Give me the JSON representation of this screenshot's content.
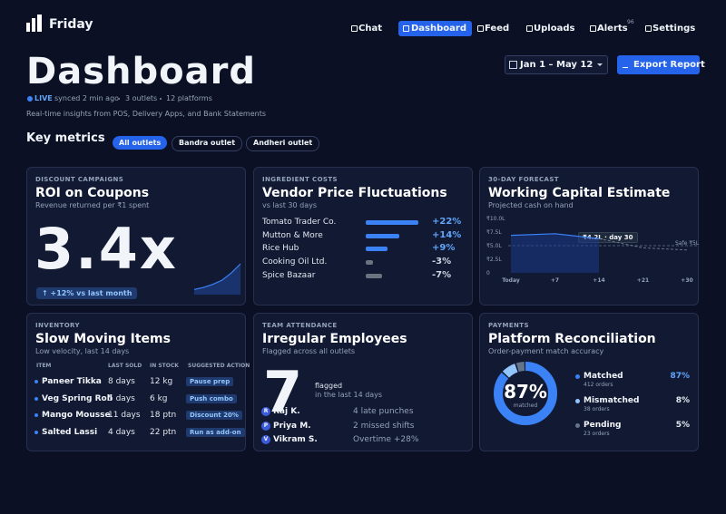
{
  "nav": {
    "brand": "Friday",
    "items": [
      "Chat",
      "Dashboard",
      "Feed",
      "Uploads",
      "Alerts",
      "Settings"
    ],
    "active": 1,
    "alerts_badge": 96
  },
  "header": {
    "title": "Dashboard",
    "live": "LIVE",
    "synced": "synced 2 min ago",
    "outlets": "3 outlets",
    "platforms": "12 platforms",
    "subtitle": "Real-time insights from POS, Delivery Apps, and Bank Statements",
    "date_range": "Jan 1 – May 12",
    "export": "Export Report"
  },
  "metrics": {
    "title": "Key metrics",
    "filters": [
      "All outlets",
      "Bandra outlet",
      "Andheri outlet"
    ],
    "active": 0
  },
  "cards": {
    "roi": {
      "label": "DISCOUNT CAMPAIGNS",
      "title": "ROI on Coupons",
      "subtitle": "Revenue returned per ₹1 spent",
      "value": "3.4x",
      "badge": "↑ +12% vs last month",
      "trend": [
        1,
        1.4,
        2,
        2.8,
        4.2,
        6
      ]
    },
    "vendor": {
      "label": "INGREDIENT COSTS",
      "title": "Vendor Price Fluctuations",
      "subtitle": "vs last 30 days",
      "rows": [
        {
          "name": "Tomato Trader Co.",
          "change": 22,
          "change_label": "+22%"
        },
        {
          "name": "Mutton & More",
          "change": 14,
          "change_label": "+14%"
        },
        {
          "name": "Rice Hub",
          "change": 9,
          "change_label": "+9%"
        },
        {
          "name": "Cooking Oil Ltd.",
          "change": -3,
          "change_label": "-3%"
        },
        {
          "name": "Spice Bazaar",
          "change": -7,
          "change_label": "-7%"
        }
      ]
    },
    "forecast": {
      "label": "30-DAY FORECAST",
      "title": "Working Capital Estimate",
      "subtitle": "Projected cash on hand",
      "categories": [
        "Today",
        "+7",
        "+14",
        "+21",
        "+30"
      ],
      "values": [
        6.9,
        7.2,
        6.3,
        4.6,
        4.2
      ],
      "ylim": [
        0,
        10
      ],
      "yticks": [
        0,
        {
          "value": 2.5,
          "label": "₹2.5L"
        },
        {
          "value": 5,
          "label": "₹5.0L"
        },
        {
          "value": 7.5,
          "label": "₹7.5L"
        },
        {
          "value": 10,
          "label": "₹10.0L"
        }
      ],
      "safe": 5,
      "safe_label": "Safe ₹5L",
      "annotation": "₹4.2L · day 30"
    },
    "slow": {
      "label": "INVENTORY",
      "title": "Slow Moving Items",
      "subtitle": "Low velocity, last 14 days",
      "columns": [
        "ITEM",
        "LAST SOLD",
        "IN STOCK",
        "SUGGESTED ACTION"
      ],
      "rows": [
        [
          "Paneer Tikka",
          "8 days",
          "12 kg",
          "Pause prep"
        ],
        [
          "Veg Spring Roll",
          "5 days",
          "6 kg",
          "Push combo"
        ],
        [
          "Mango Mousse",
          "11 days",
          "18 ptn",
          "Discount 20%"
        ],
        [
          "Salted Lassi",
          "4 days",
          "22 ptn",
          "Run as add-on"
        ]
      ]
    },
    "employees": {
      "label": "TEAM ATTENDANCE",
      "title": "Irregular Employees",
      "subtitle": "Flagged across all outlets",
      "count": 7,
      "flagged": "flagged",
      "period": "in the last 14 days",
      "rows": [
        {
          "initial": "R",
          "name": "Raj K.",
          "issue": "4 late punches"
        },
        {
          "initial": "P",
          "name": "Priya M.",
          "issue": "2 missed shifts"
        },
        {
          "initial": "V",
          "name": "Vikram S.",
          "issue": "Overtime +28%"
        }
      ]
    },
    "recon": {
      "label": "PAYMENTS",
      "title": "Platform Reconciliation",
      "subtitle": "Order-payment match accuracy",
      "center": "87%",
      "center_label": "matched",
      "rows": [
        {
          "name": "Matched",
          "orders": 412,
          "orders_label": "412 orders",
          "share": "87%",
          "color": "#3b82f6"
        },
        {
          "name": "Mismatched",
          "orders": 38,
          "orders_label": "38 orders",
          "share": "8%",
          "color": "#93c5fd"
        },
        {
          "name": "Pending",
          "orders": 23,
          "orders_label": "23 orders",
          "share": "5%",
          "color": "#64748b"
        }
      ]
    }
  }
}
